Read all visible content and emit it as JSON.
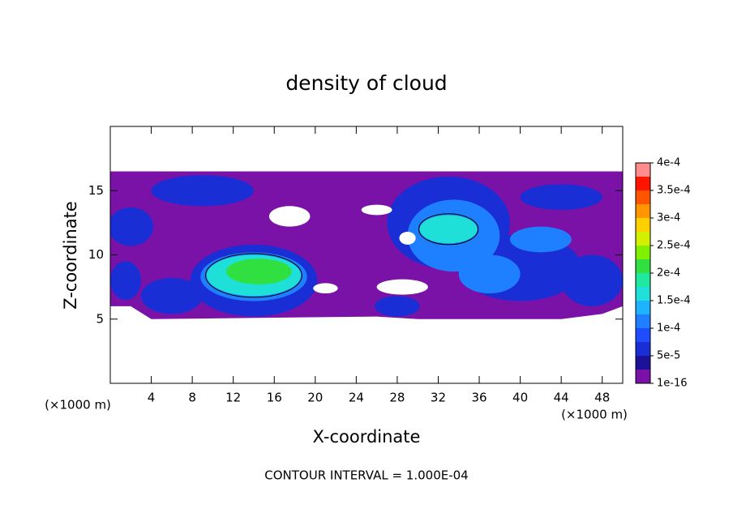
{
  "chart_data": {
    "type": "contour",
    "title": "density of cloud",
    "xlabel": "X-coordinate",
    "ylabel": "Z-coordinate",
    "x_unit": "(×1000 m)",
    "y_unit": "(×1000 m)",
    "footnote": "CONTOUR INTERVAL = 1.000E-04",
    "xlim": [
      0,
      50
    ],
    "xticks": [
      4,
      8,
      12,
      16,
      20,
      24,
      28,
      32,
      36,
      40,
      44,
      48
    ],
    "ylim": [
      0,
      20
    ],
    "yticks": [
      5,
      10,
      15
    ],
    "colorbar_ticks": [
      {
        "value": 1e-16,
        "label": "1e-16"
      },
      {
        "value": 5e-05,
        "label": "5e-5"
      },
      {
        "value": 0.0001,
        "label": "1e-4"
      },
      {
        "value": 0.00015,
        "label": "1.5e-4"
      },
      {
        "value": 0.0002,
        "label": "2e-4"
      },
      {
        "value": 0.00025,
        "label": "2.5e-4"
      },
      {
        "value": 0.0003,
        "label": "3e-4"
      },
      {
        "value": 0.00035,
        "label": "3.5e-4"
      },
      {
        "value": 0.0004,
        "label": "4e-4"
      }
    ],
    "colors": [
      "#7a12a8",
      "#1c129a",
      "#1a2ed6",
      "#1f4cff",
      "#1f80ff",
      "#1fb2ff",
      "#1fe0d8",
      "#20e8a0",
      "#2fe040",
      "#80f000",
      "#d2f000",
      "#ffd000",
      "#ff9600",
      "#ff5400",
      "#ff1400",
      "#ff8c8c"
    ]
  }
}
